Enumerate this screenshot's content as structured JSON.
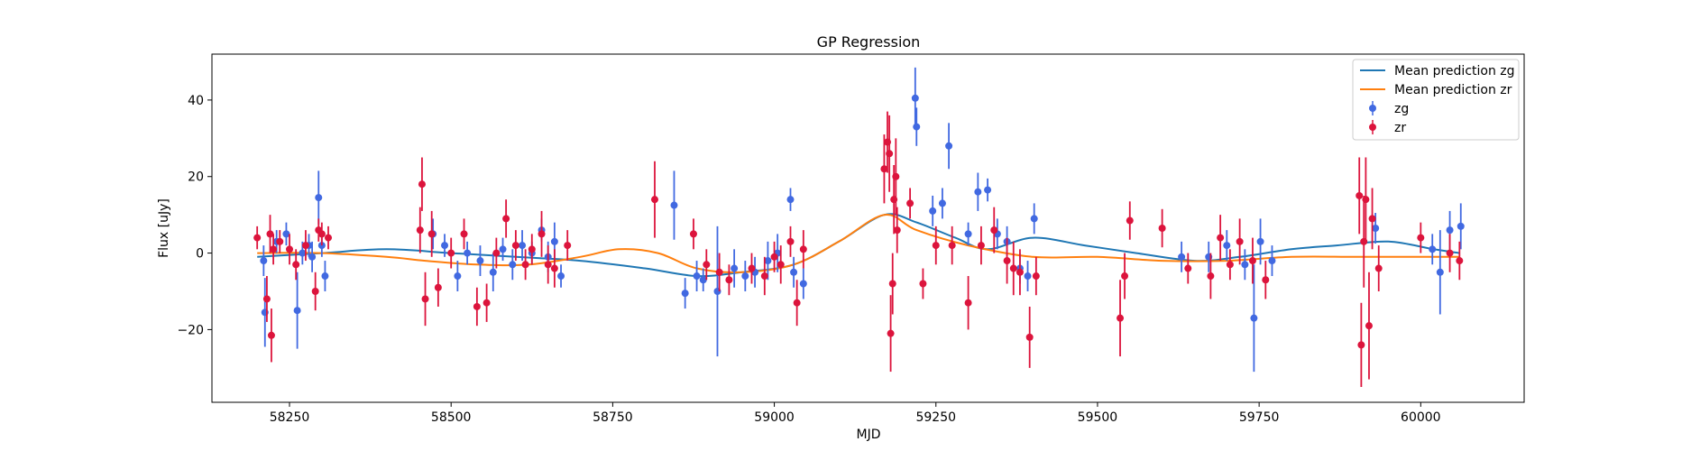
{
  "chart_data": {
    "type": "scatter",
    "title": "GP Regression",
    "xlabel": "MJD",
    "ylabel": "Flux [uJy]",
    "xlim": [
      58130,
      60160
    ],
    "ylim": [
      -39,
      52
    ],
    "x_ticks": [
      58250,
      58500,
      58750,
      59000,
      59250,
      59500,
      59750,
      60000
    ],
    "y_ticks": [
      -20,
      0,
      20,
      40
    ],
    "grid": false,
    "legend_position": "top-right",
    "legend": [
      "Mean prediction zg",
      "Mean prediction zr",
      "zg",
      "zr"
    ],
    "series": [
      {
        "name": "Mean prediction zg",
        "kind": "line",
        "color": "#1f77b4",
        "x": [
          58200,
          58300,
          58400,
          58500,
          58600,
          58700,
          58800,
          58880,
          58950,
          59030,
          59100,
          59170,
          59220,
          59280,
          59330,
          59400,
          59480,
          59560,
          59650,
          59720,
          59800,
          59870,
          59950,
          60020,
          60060
        ],
        "y": [
          -1,
          0,
          1,
          0,
          -1,
          -2,
          -4,
          -6,
          -5,
          -3,
          3,
          10,
          8,
          4,
          1,
          4,
          2,
          0,
          -2,
          -1,
          1,
          2,
          3,
          1,
          0
        ]
      },
      {
        "name": "Mean prediction zr",
        "kind": "line",
        "color": "#ff7f0e",
        "x": [
          58200,
          58300,
          58400,
          58460,
          58540,
          58620,
          58700,
          58760,
          58820,
          58880,
          58950,
          59030,
          59100,
          59170,
          59220,
          59300,
          59400,
          59500,
          59600,
          59700,
          59800,
          59900,
          60000,
          60060
        ],
        "y": [
          0,
          0,
          -1,
          -2,
          -3,
          -3,
          -1,
          1,
          0,
          -4,
          -5,
          -3,
          3,
          10,
          6,
          2,
          -1,
          -1,
          -2,
          -2,
          -1,
          -1,
          -1,
          -1
        ]
      },
      {
        "name": "zg",
        "kind": "errorbar",
        "color": "#4169e1",
        "x": [
          58210,
          58212,
          58230,
          58245,
          58262,
          58270,
          58280,
          58285,
          58295,
          58300,
          58305,
          58472,
          58490,
          58510,
          58525,
          58545,
          58565,
          58580,
          58595,
          58610,
          58625,
          58640,
          58650,
          58660,
          58670,
          58845,
          58862,
          58880,
          58890,
          58912,
          58938,
          58955,
          58970,
          58990,
          59005,
          59025,
          59030,
          59045,
          59218,
          59220,
          59245,
          59260,
          59270,
          59300,
          59315,
          59330,
          59345,
          59360,
          59380,
          59392,
          59402,
          59630,
          59672,
          59700,
          59728,
          59742,
          59752,
          59770,
          59930,
          60018,
          60030,
          60045,
          60062
        ],
        "y": [
          -2,
          -15.5,
          3,
          5,
          -15,
          0,
          2,
          -1,
          14.5,
          2,
          -6,
          5,
          2,
          -6,
          0,
          -2,
          -5,
          1,
          -3,
          2,
          0,
          6,
          -1,
          3,
          -6,
          12.5,
          -10.5,
          -6,
          -7,
          -10,
          -4,
          -6,
          -5,
          -2,
          0,
          14,
          -5,
          -8,
          40.5,
          33,
          11,
          13,
          28,
          5,
          16,
          16.5,
          5,
          3,
          -4,
          -6,
          9,
          -1,
          -1,
          2,
          -3,
          -17,
          3,
          -2,
          6.5,
          1,
          -5,
          6,
          7
        ],
        "err": [
          4,
          9,
          3,
          3,
          10,
          3,
          3,
          4,
          7,
          3,
          4,
          4,
          3,
          4,
          3,
          4,
          5,
          3,
          4,
          4,
          3,
          3,
          4,
          5,
          3,
          9,
          4,
          4,
          3,
          17,
          5,
          4,
          4,
          5,
          5,
          3,
          4,
          4,
          8,
          5,
          4,
          4,
          6,
          3,
          5,
          3,
          4,
          4,
          4,
          4,
          4,
          4,
          4,
          4,
          4,
          14,
          6,
          4,
          4,
          4,
          11,
          5,
          6
        ]
      },
      {
        "name": "zr",
        "kind": "errorbar",
        "color": "#dc143c",
        "x": [
          58200,
          58215,
          58220,
          58222,
          58225,
          58235,
          58250,
          58260,
          58275,
          58290,
          58295,
          58300,
          58310,
          58452,
          58455,
          58460,
          58470,
          58480,
          58500,
          58520,
          58540,
          58555,
          58570,
          58585,
          58600,
          58615,
          58625,
          58640,
          58650,
          58660,
          58680,
          58815,
          58875,
          58895,
          58915,
          58930,
          58965,
          58985,
          59000,
          59010,
          59025,
          59035,
          59045,
          59170,
          59175,
          59178,
          59180,
          59183,
          59185,
          59188,
          59190,
          59210,
          59230,
          59250,
          59275,
          59300,
          59320,
          59340,
          59360,
          59370,
          59380,
          59395,
          59405,
          59535,
          59542,
          59550,
          59600,
          59640,
          59675,
          59690,
          59705,
          59720,
          59740,
          59760,
          59905,
          59908,
          59912,
          59915,
          59920,
          59925,
          59935,
          60000,
          60045,
          60060
        ],
        "y": [
          4,
          -12,
          5,
          -21.5,
          1,
          3,
          1,
          -3,
          2,
          -10,
          6,
          5,
          4,
          6,
          18,
          -12,
          5,
          -9,
          0,
          5,
          -14,
          -13,
          0,
          9,
          2,
          -3,
          1,
          5,
          -3,
          -4,
          2,
          14,
          5,
          -3,
          -5,
          -7,
          -4,
          -6,
          -1,
          -3,
          3,
          -13,
          1,
          22,
          29,
          26,
          -21,
          -8,
          14,
          20,
          6,
          13,
          -8,
          2,
          2,
          -13,
          2,
          6,
          -2,
          -4,
          -5,
          -22,
          -6,
          -17,
          -6,
          8.5,
          6.5,
          -4,
          -6,
          4,
          -3,
          3,
          -2,
          -7,
          15,
          -24,
          3,
          14,
          -19,
          9,
          -4,
          4,
          0,
          -2
        ],
        "err": [
          3,
          6,
          5,
          7,
          4,
          3,
          4,
          4,
          4,
          5,
          3,
          3,
          3,
          6,
          7,
          7,
          6,
          5,
          4,
          4,
          5,
          5,
          4,
          5,
          4,
          4,
          4,
          6,
          5,
          5,
          4,
          10,
          4,
          4,
          5,
          4,
          4,
          5,
          4,
          5,
          4,
          6,
          5,
          9,
          8,
          10,
          10,
          8,
          9,
          10,
          6,
          4,
          4,
          5,
          5,
          7,
          5,
          6,
          6,
          7,
          6,
          8,
          5,
          10,
          6,
          5,
          5,
          4,
          6,
          6,
          4,
          6,
          6,
          5,
          10,
          11,
          12,
          11,
          14,
          8,
          6,
          4,
          5,
          5
        ]
      }
    ]
  }
}
